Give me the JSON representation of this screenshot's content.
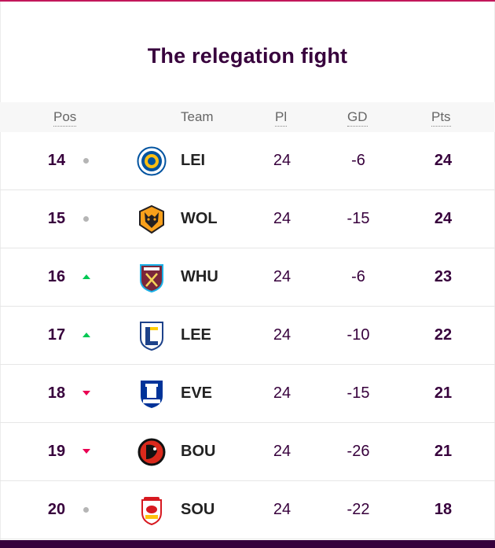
{
  "title": "The relegation fight",
  "headers": {
    "pos": "Pos",
    "team": "Team",
    "pl": "Pl",
    "gd": "GD",
    "pts": "Pts"
  },
  "colors": {
    "accent": "#37003c",
    "up": "#00c853",
    "down": "#e90052",
    "same": "#b5b5b5"
  },
  "rows": [
    {
      "pos": "14",
      "movement": "same",
      "team": "LEI",
      "badge": "leicester-badge-icon",
      "pl": "24",
      "gd": "-6",
      "pts": "24"
    },
    {
      "pos": "15",
      "movement": "same",
      "team": "WOL",
      "badge": "wolves-badge-icon",
      "pl": "24",
      "gd": "-15",
      "pts": "24"
    },
    {
      "pos": "16",
      "movement": "up",
      "team": "WHU",
      "badge": "west-ham-badge-icon",
      "pl": "24",
      "gd": "-6",
      "pts": "23"
    },
    {
      "pos": "17",
      "movement": "up",
      "team": "LEE",
      "badge": "leeds-badge-icon",
      "pl": "24",
      "gd": "-10",
      "pts": "22"
    },
    {
      "pos": "18",
      "movement": "down",
      "team": "EVE",
      "badge": "everton-badge-icon",
      "pl": "24",
      "gd": "-15",
      "pts": "21"
    },
    {
      "pos": "19",
      "movement": "down",
      "team": "BOU",
      "badge": "bournemouth-badge-icon",
      "pl": "24",
      "gd": "-26",
      "pts": "21"
    },
    {
      "pos": "20",
      "movement": "same",
      "team": "SOU",
      "badge": "southampton-badge-icon",
      "pl": "24",
      "gd": "-22",
      "pts": "18"
    }
  ]
}
